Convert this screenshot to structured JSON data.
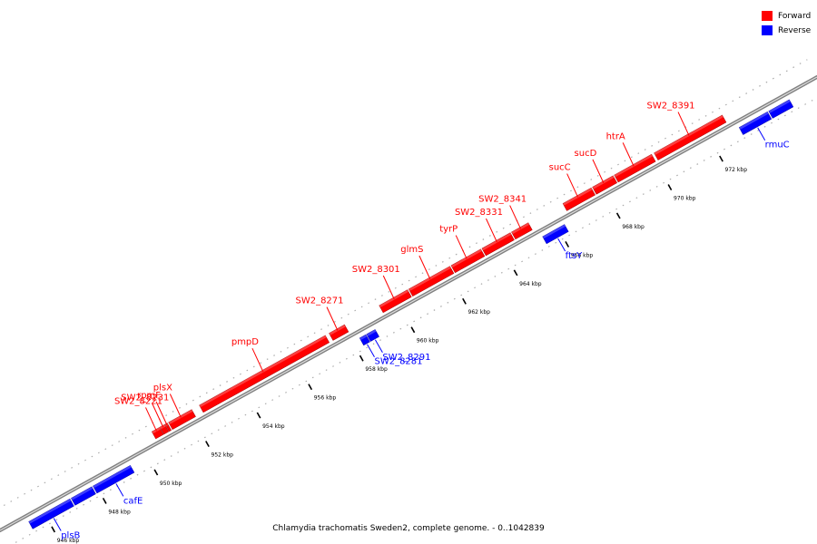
{
  "caption": "Chlamydia trachomatis Sweden2, complete genome. - 0..1042839",
  "legend": [
    {
      "label": "Forward",
      "color": "#ff0000"
    },
    {
      "label": "Reverse",
      "color": "#0000ff"
    }
  ],
  "colors": {
    "forward": "#ff0000",
    "reverse": "#0000ff",
    "backbone": "#808080"
  },
  "ticks": [
    {
      "label": "946 kbp",
      "kbp": 946
    },
    {
      "label": "948 kbp",
      "kbp": 948
    },
    {
      "label": "950 kbp",
      "kbp": 950
    },
    {
      "label": "952 kbp",
      "kbp": 952
    },
    {
      "label": "954 kbp",
      "kbp": 954
    },
    {
      "label": "956 kbp",
      "kbp": 956
    },
    {
      "label": "958 kbp",
      "kbp": 958
    },
    {
      "label": "960 kbp",
      "kbp": 960
    },
    {
      "label": "962 kbp",
      "kbp": 962
    },
    {
      "label": "964 kbp",
      "kbp": 964
    },
    {
      "label": "966 kbp",
      "kbp": 966
    },
    {
      "label": "968 kbp",
      "kbp": 968
    },
    {
      "label": "970 kbp",
      "kbp": 970
    },
    {
      "label": "972 kbp",
      "kbp": 972
    }
  ],
  "genes": [
    {
      "name": "plsB",
      "strand": "reverse",
      "start": 945.4,
      "end": 947.0
    },
    {
      "name": "",
      "strand": "reverse",
      "start": 947.05,
      "end": 947.85
    },
    {
      "name": "cafE",
      "strand": "reverse",
      "start": 947.9,
      "end": 949.35
    },
    {
      "name": "SW2_8221",
      "strand": "forward",
      "start": 950.55,
      "end": 950.85
    },
    {
      "name": "SW2_8231",
      "strand": "forward",
      "start": 950.87,
      "end": 951.05
    },
    {
      "name": "rpmF",
      "strand": "forward",
      "start": 951.07,
      "end": 951.15
    },
    {
      "name": "plsX",
      "strand": "forward",
      "start": 951.2,
      "end": 952.1
    },
    {
      "name": "pmpD",
      "strand": "forward",
      "start": 952.4,
      "end": 957.3
    },
    {
      "name": "SW2_8271",
      "strand": "forward",
      "start": 957.45,
      "end": 958.05
    },
    {
      "name": "SW2_8281",
      "strand": "reverse",
      "start": 958.28,
      "end": 958.52
    },
    {
      "name": "SW2_8291",
      "strand": "reverse",
      "start": 958.55,
      "end": 958.88
    },
    {
      "name": "SW2_8301",
      "strand": "forward",
      "start": 959.4,
      "end": 960.5
    },
    {
      "name": "glmS",
      "strand": "forward",
      "start": 960.55,
      "end": 962.15
    },
    {
      "name": "tyrP",
      "strand": "forward",
      "start": 962.2,
      "end": 963.35
    },
    {
      "name": "SW2_8331",
      "strand": "forward",
      "start": 963.4,
      "end": 964.5
    },
    {
      "name": "SW2_8341",
      "strand": "forward",
      "start": 964.55,
      "end": 965.2
    },
    {
      "name": "ftsY",
      "strand": "reverse",
      "start": 965.4,
      "end": 966.25
    },
    {
      "name": "sucC",
      "strand": "forward",
      "start": 966.55,
      "end": 967.65
    },
    {
      "name": "sucD",
      "strand": "forward",
      "start": 967.7,
      "end": 968.5
    },
    {
      "name": "htrA",
      "strand": "forward",
      "start": 968.55,
      "end": 970.0
    },
    {
      "name": "SW2_8391",
      "strand": "forward",
      "start": 970.1,
      "end": 972.75
    },
    {
      "name": "rmuC",
      "strand": "reverse",
      "start": 973.05,
      "end": 974.15
    },
    {
      "name": "",
      "strand": "reverse",
      "start": 974.2,
      "end": 975.0
    }
  ]
}
